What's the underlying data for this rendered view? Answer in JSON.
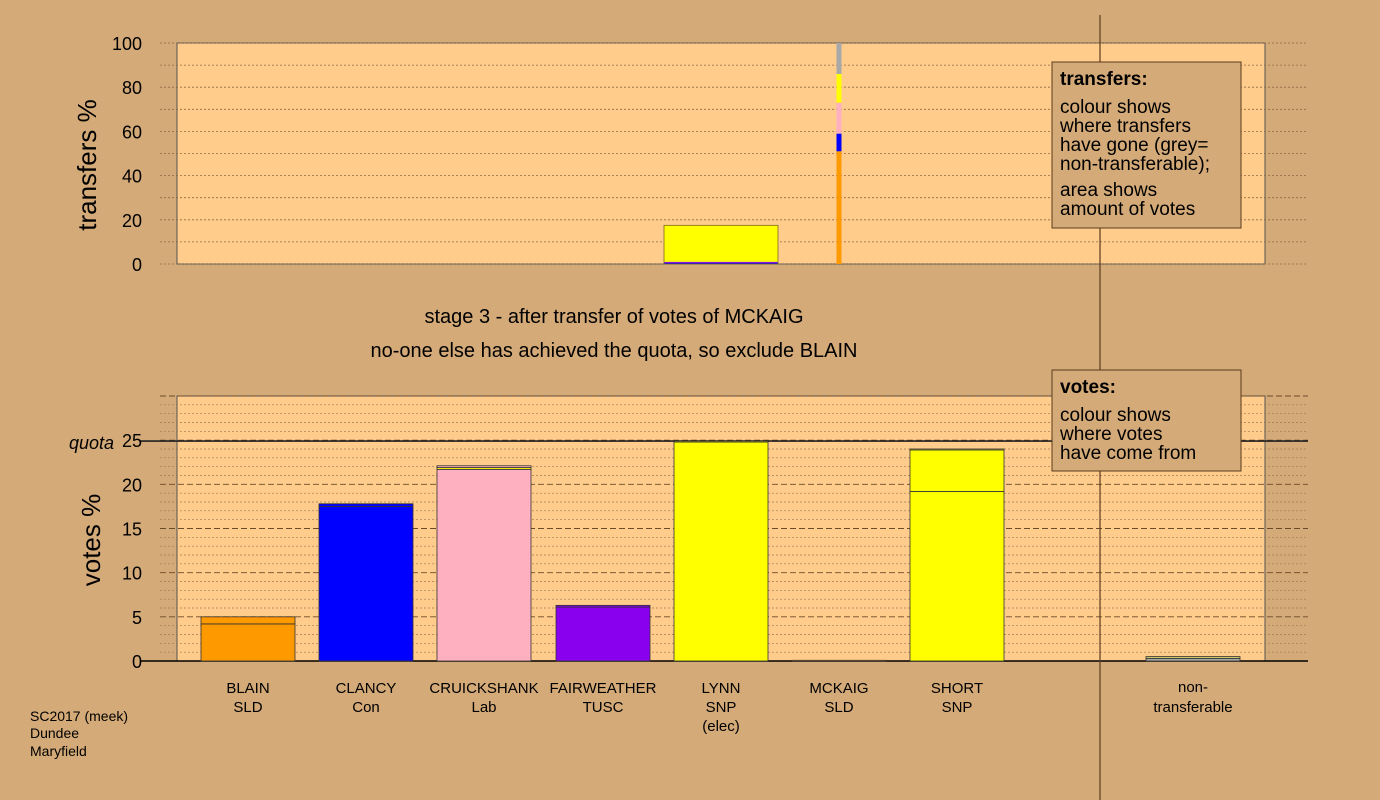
{
  "chart_data": [
    {
      "type": "bar",
      "name": "transfers",
      "ylabel": "transfers %",
      "ylim": [
        0,
        100
      ],
      "yticks": [
        0,
        20,
        40,
        60,
        80,
        100
      ],
      "bars": [
        {
          "candidate": "LYNN",
          "segments": [
            {
              "color": "#0000ff",
              "value": 0.5
            },
            {
              "color": "#8800ee",
              "value": 0.5
            },
            {
              "color": "#ffff00",
              "value": 16.5
            }
          ]
        },
        {
          "candidate": "MCKAIG",
          "segments": [
            {
              "color": "#ff9900",
              "value": 51
            },
            {
              "color": "#0000ff",
              "value": 8
            },
            {
              "color": "#ffb0c0",
              "value": 14
            },
            {
              "color": "#ffff00",
              "value": 13
            },
            {
              "color": "#a8a8a8",
              "value": 14
            }
          ]
        }
      ]
    },
    {
      "type": "bar",
      "name": "votes",
      "ylabel": "votes %",
      "ylim": [
        0,
        30
      ],
      "yticks": [
        0,
        5,
        10,
        15,
        20,
        25
      ],
      "quota": 24.9,
      "quota_label": "quota",
      "categories": [
        "BLAIN\nSLD",
        "CLANCY\nCon",
        "CRUICKSHANK\nLab",
        "FAIRWEATHER\nTUSC",
        "LYNN\nSNP\n(elec)",
        "MCKAIG\nSLD",
        "SHORT\nSNP",
        "non-\ntransferable"
      ],
      "bars": [
        {
          "candidate": "BLAIN",
          "segments": [
            {
              "color": "#ff9900",
              "value": 4.2
            },
            {
              "color": "#ff9900",
              "value": 0.8
            }
          ]
        },
        {
          "candidate": "CLANCY",
          "segments": [
            {
              "color": "#0000ff",
              "value": 17.5
            },
            {
              "color": "#0000ff",
              "value": 0.3
            }
          ]
        },
        {
          "candidate": "CRUICKSHANK",
          "segments": [
            {
              "color": "#ffb0c0",
              "value": 21.7
            },
            {
              "color": "#ffff00",
              "value": 0.2
            },
            {
              "color": "#ffb0c0",
              "value": 0.2
            }
          ]
        },
        {
          "candidate": "FAIRWEATHER",
          "segments": [
            {
              "color": "#8800ee",
              "value": 6.1
            },
            {
              "color": "#8800ee",
              "value": 0.2
            }
          ]
        },
        {
          "candidate": "LYNN",
          "segments": [
            {
              "color": "#ffff00",
              "value": 24.8
            },
            {
              "color": "#ffff00",
              "value": 0.1
            }
          ]
        },
        {
          "candidate": "MCKAIG",
          "segments": [
            {
              "color": "#ff9900",
              "value": 0.08
            }
          ]
        },
        {
          "candidate": "SHORT",
          "segments": [
            {
              "color": "#ffff00",
              "value": 19.2
            },
            {
              "color": "#ffff00",
              "value": 4.7
            },
            {
              "color": "#ffff00",
              "value": 0.1
            }
          ]
        },
        {
          "candidate": "non-transferable",
          "segments": [
            {
              "color": "#a8a8a8",
              "value": 0.3
            },
            {
              "color": "#d4d06a",
              "value": 0.2
            }
          ]
        }
      ]
    }
  ],
  "stage_text": {
    "line1": "stage 3 - after transfer of votes of MCKAIG",
    "line2": "no-one else has achieved the quota, so exclude BLAIN"
  },
  "legend_transfers": {
    "title": "transfers:",
    "lines1": [
      "colour shows",
      "where transfers",
      "have gone (grey=",
      "non-transferable);"
    ],
    "lines2": [
      "area shows",
      "amount of votes"
    ]
  },
  "legend_votes": {
    "title": "votes:",
    "lines": [
      "colour shows",
      "where votes",
      "have come from"
    ]
  },
  "footer": [
    "SC2017 (meek)",
    "Dundee",
    "Maryfield"
  ],
  "colors": {
    "background": "#d4aa78",
    "plot_bg": "#ffcc8c"
  }
}
